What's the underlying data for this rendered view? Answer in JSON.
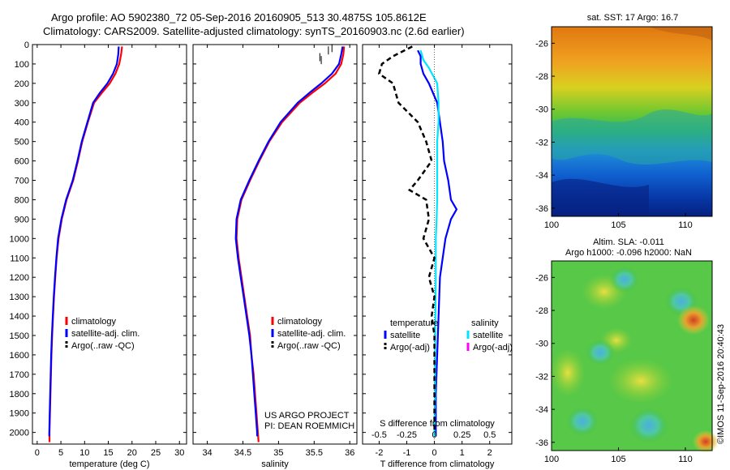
{
  "header": {
    "line1": "Argo profile: AO 5902380_72 05-Sep-2016 20160905_513 30.4875S 105.8612E",
    "line2": "Climatology: CARS2009. Satellite-adjusted climatology: synTS_20160903.nc (2.6d earlier)"
  },
  "side_label": "©IMOS 11-Sep-2016 20:40:43",
  "colors": {
    "climatology": "#ff0000",
    "satellite": "#0000ff",
    "argo": "#000000",
    "sal_satellite": "#00e5ff",
    "sal_argo": "#ff00ff"
  },
  "chart_data": [
    {
      "type": "line",
      "id": "temperature",
      "xlabel": "temperature (deg C)",
      "xlim": [
        -1,
        31.5
      ],
      "ylim": [
        0,
        2060
      ],
      "y_reversed": true,
      "xticks": [
        0,
        5,
        10,
        15,
        20,
        25,
        30
      ],
      "yticks": [
        0,
        100,
        200,
        300,
        400,
        500,
        600,
        700,
        800,
        900,
        1000,
        1100,
        1200,
        1300,
        1400,
        1500,
        1600,
        1700,
        1800,
        1900,
        2000
      ],
      "legend": [
        "climatology",
        "satellite-adj. clim.",
        "Argo(..raw -QC)"
      ],
      "series": [
        {
          "name": "climatology",
          "color": "#ff0000",
          "points": [
            [
              17.9,
              10
            ],
            [
              17.7,
              50
            ],
            [
              17.3,
              100
            ],
            [
              16.5,
              150
            ],
            [
              15.3,
              200
            ],
            [
              13.6,
              250
            ],
            [
              12.0,
              300
            ],
            [
              10.7,
              400
            ],
            [
              9.5,
              500
            ],
            [
              8.6,
              600
            ],
            [
              7.6,
              700
            ],
            [
              6.2,
              800
            ],
            [
              5.2,
              900
            ],
            [
              4.5,
              1000
            ],
            [
              4.1,
              1100
            ],
            [
              3.8,
              1200
            ],
            [
              3.55,
              1300
            ],
            [
              3.35,
              1400
            ],
            [
              3.15,
              1500
            ],
            [
              3.0,
              1600
            ],
            [
              2.9,
              1700
            ],
            [
              2.8,
              1800
            ],
            [
              2.7,
              1900
            ],
            [
              2.6,
              2000
            ],
            [
              2.6,
              2050
            ]
          ]
        },
        {
          "name": "satellite-adj. clim.",
          "color": "#0000ff",
          "points": [
            [
              17.2,
              10
            ],
            [
              17.1,
              50
            ],
            [
              16.8,
              100
            ],
            [
              16.0,
              150
            ],
            [
              14.8,
              200
            ],
            [
              13.2,
              250
            ],
            [
              11.8,
              300
            ],
            [
              10.6,
              400
            ],
            [
              9.4,
              500
            ],
            [
              8.5,
              600
            ],
            [
              7.5,
              700
            ],
            [
              6.1,
              800
            ],
            [
              5.1,
              900
            ],
            [
              4.4,
              1000
            ],
            [
              4.05,
              1100
            ],
            [
              3.75,
              1200
            ],
            [
              3.5,
              1300
            ],
            [
              3.3,
              1400
            ],
            [
              3.1,
              1500
            ],
            [
              2.95,
              1600
            ],
            [
              2.85,
              1700
            ],
            [
              2.75,
              1800
            ],
            [
              2.65,
              1900
            ],
            [
              2.55,
              2000
            ],
            [
              2.55,
              2020
            ]
          ]
        }
      ]
    },
    {
      "type": "line",
      "id": "salinity",
      "xlabel": "salinity",
      "xlim": [
        33.8,
        36.1
      ],
      "ylim": [
        0,
        2060
      ],
      "y_reversed": true,
      "xticks": [
        34,
        34.5,
        35,
        35.5,
        36
      ],
      "legend": [
        "climatology",
        "satellite-adj. clim.",
        "Argo(..raw -QC)"
      ],
      "annotation": [
        "US ARGO PROJECT",
        "PI: DEAN ROEMMICH"
      ],
      "series": [
        {
          "name": "climatology",
          "color": "#ff0000",
          "points": [
            [
              35.92,
              10
            ],
            [
              35.91,
              50
            ],
            [
              35.88,
              100
            ],
            [
              35.8,
              150
            ],
            [
              35.65,
              200
            ],
            [
              35.47,
              250
            ],
            [
              35.3,
              300
            ],
            [
              35.05,
              400
            ],
            [
              34.87,
              500
            ],
            [
              34.73,
              600
            ],
            [
              34.6,
              700
            ],
            [
              34.48,
              800
            ],
            [
              34.42,
              900
            ],
            [
              34.41,
              1000
            ],
            [
              34.44,
              1100
            ],
            [
              34.48,
              1200
            ],
            [
              34.52,
              1300
            ],
            [
              34.56,
              1400
            ],
            [
              34.6,
              1500
            ],
            [
              34.62,
              1600
            ],
            [
              34.65,
              1700
            ],
            [
              34.67,
              1800
            ],
            [
              34.69,
              1900
            ],
            [
              34.71,
              2000
            ],
            [
              34.72,
              2050
            ]
          ]
        },
        {
          "name": "satellite-adj. clim.",
          "color": "#0000ff",
          "points": [
            [
              35.9,
              10
            ],
            [
              35.88,
              50
            ],
            [
              35.85,
              100
            ],
            [
              35.75,
              150
            ],
            [
              35.6,
              200
            ],
            [
              35.43,
              250
            ],
            [
              35.27,
              300
            ],
            [
              35.03,
              400
            ],
            [
              34.86,
              500
            ],
            [
              34.72,
              600
            ],
            [
              34.59,
              700
            ],
            [
              34.47,
              800
            ],
            [
              34.41,
              900
            ],
            [
              34.4,
              1000
            ],
            [
              34.43,
              1100
            ],
            [
              34.47,
              1200
            ],
            [
              34.51,
              1300
            ],
            [
              34.55,
              1400
            ],
            [
              34.59,
              1500
            ],
            [
              34.62,
              1600
            ],
            [
              34.64,
              1700
            ],
            [
              34.66,
              1800
            ],
            [
              34.68,
              1900
            ],
            [
              34.7,
              2000
            ],
            [
              34.7,
              2020
            ]
          ]
        }
      ],
      "argo_marks": [
        [
          35.58,
          65
        ],
        [
          35.6,
          80
        ],
        [
          35.75,
          18
        ],
        [
          35.7,
          30
        ]
      ]
    },
    {
      "type": "line",
      "id": "difference",
      "xlabel": "T difference from climatology",
      "xlabel2": "S difference from climatology",
      "xlim": [
        -2.6,
        2.8
      ],
      "ylim": [
        0,
        2060
      ],
      "y_reversed": true,
      "xticks": [
        -2,
        -1,
        0,
        1,
        2
      ],
      "s_ticks": [
        {
          "v": -0.5,
          "label": "-0.5"
        },
        {
          "v": -0.25,
          "label": "-0.25"
        },
        {
          "v": 0,
          "label": "0"
        },
        {
          "v": 0.25,
          "label": "0.25"
        },
        {
          "v": 0.5,
          "label": "0.5"
        }
      ],
      "legend_temperature": [
        "temperature",
        "satellite",
        "Argo(-adj)"
      ],
      "legend_salinity": [
        "salinity",
        "satellite",
        "Argo(-adj)"
      ],
      "series": [
        {
          "name": "T satellite",
          "color": "#0000ff",
          "points": [
            [
              -0.6,
              30
            ],
            [
              -0.5,
              60
            ],
            [
              -0.5,
              100
            ],
            [
              -0.4,
              150
            ],
            [
              -0.2,
              200
            ],
            [
              0.1,
              300
            ],
            [
              0.2,
              400
            ],
            [
              0.3,
              500
            ],
            [
              0.35,
              600
            ],
            [
              0.5,
              700
            ],
            [
              0.6,
              800
            ],
            [
              0.8,
              850
            ],
            [
              0.6,
              900
            ],
            [
              0.4,
              1000
            ],
            [
              0.3,
              1100
            ],
            [
              0.2,
              1200
            ],
            [
              0.15,
              1400
            ],
            [
              0.1,
              1600
            ],
            [
              0.05,
              1800
            ],
            [
              0.05,
              2000
            ],
            [
              0.05,
              2020
            ]
          ]
        },
        {
          "name": "S satellite",
          "color": "#00e5ff",
          "points": [
            [
              -0.5,
              30
            ],
            [
              -0.4,
              80
            ],
            [
              -0.2,
              120
            ],
            [
              0.1,
              200
            ],
            [
              0.15,
              300
            ],
            [
              0.15,
              400
            ],
            [
              0.1,
              500
            ],
            [
              0.1,
              700
            ],
            [
              0.1,
              800
            ],
            [
              0.08,
              900
            ],
            [
              0.05,
              1000
            ],
            [
              0.05,
              1200
            ],
            [
              0.03,
              1500
            ],
            [
              0.02,
              1800
            ],
            [
              0.0,
              2020
            ]
          ]
        },
        {
          "name": "T Argo",
          "color": "#000000",
          "points": [
            [
              -0.8,
              10
            ],
            [
              -1.5,
              60
            ],
            [
              -1.9,
              100
            ],
            [
              -2.0,
              150
            ],
            [
              -1.5,
              200
            ],
            [
              -1.3,
              300
            ],
            [
              -0.6,
              400
            ],
            [
              -0.3,
              500
            ],
            [
              -0.1,
              600
            ],
            [
              -0.6,
              700
            ],
            [
              -0.9,
              750
            ],
            [
              -0.3,
              800
            ],
            [
              -0.2,
              900
            ],
            [
              -0.4,
              1000
            ],
            [
              0,
              1100
            ],
            [
              -0.2,
              1200
            ],
            [
              0,
              1300
            ],
            [
              -0.1,
              1400
            ],
            [
              0,
              1500
            ],
            [
              0,
              1600
            ],
            [
              0,
              1800
            ],
            [
              0,
              2000
            ]
          ]
        }
      ]
    },
    {
      "type": "heatmap",
      "id": "sst_map",
      "title": "sat. SST: 17 Argo: 16.7",
      "xticks": [
        100,
        105,
        110
      ],
      "yticks": [
        -26,
        -28,
        -30,
        -32,
        -34,
        -36
      ],
      "xlim": [
        100,
        112
      ],
      "ylim": [
        -36.5,
        -25
      ]
    },
    {
      "type": "heatmap",
      "id": "sla_map",
      "title": "Altim. SLA: -0.011",
      "subtitle": "Argo h1000: -0.096 h2000: NaN",
      "xticks": [
        100,
        105,
        110
      ],
      "yticks": [
        -26,
        -28,
        -30,
        -32,
        -34,
        -36
      ],
      "xlim": [
        100,
        112
      ],
      "ylim": [
        -36.5,
        -25
      ]
    }
  ]
}
